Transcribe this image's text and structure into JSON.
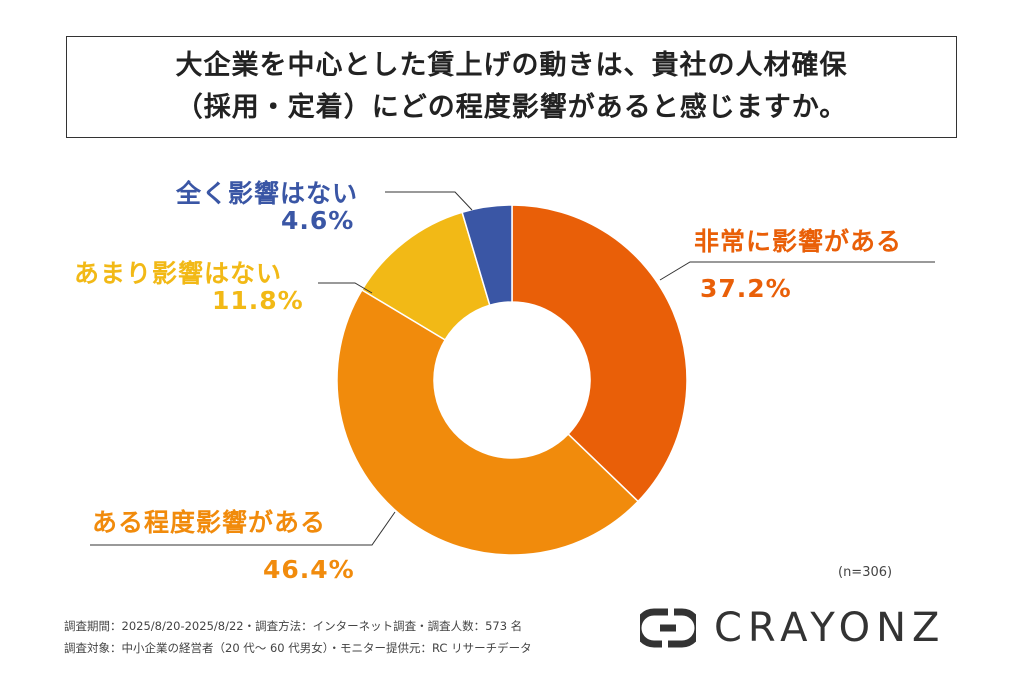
{
  "title_lines": [
    "大企業を中心とした賃上げの動きは、貴社の人材確保",
    "（採用・定着）にどの程度影響があると感じますか。"
  ],
  "chart_data": {
    "type": "pie",
    "donut": true,
    "start": "top, clockwise",
    "categories": [
      "非常に影響がある",
      "ある程度影響がある",
      "あまり影響はない",
      "全く影響はない"
    ],
    "values": [
      37.2,
      46.4,
      11.8,
      4.6
    ],
    "labels": [
      "37.2%",
      "46.4%",
      "11.8%",
      "4.6%"
    ],
    "colors": [
      "#E95F08",
      "#F18B0C",
      "#F2B916",
      "#3A56A5"
    ],
    "legend": "none"
  },
  "sample_size": "(n=306)",
  "footer": [
    "調査期間：2025/8/20-2025/8/22・調査方法：インターネット調査・調査人数：573 名",
    "調査対象：中小企業の経営者（20 代～ 60 代男女）・モニター提供元：RC リサーチデータ"
  ],
  "logo": {
    "text": "CRAYONZ",
    "color": "#333333"
  }
}
